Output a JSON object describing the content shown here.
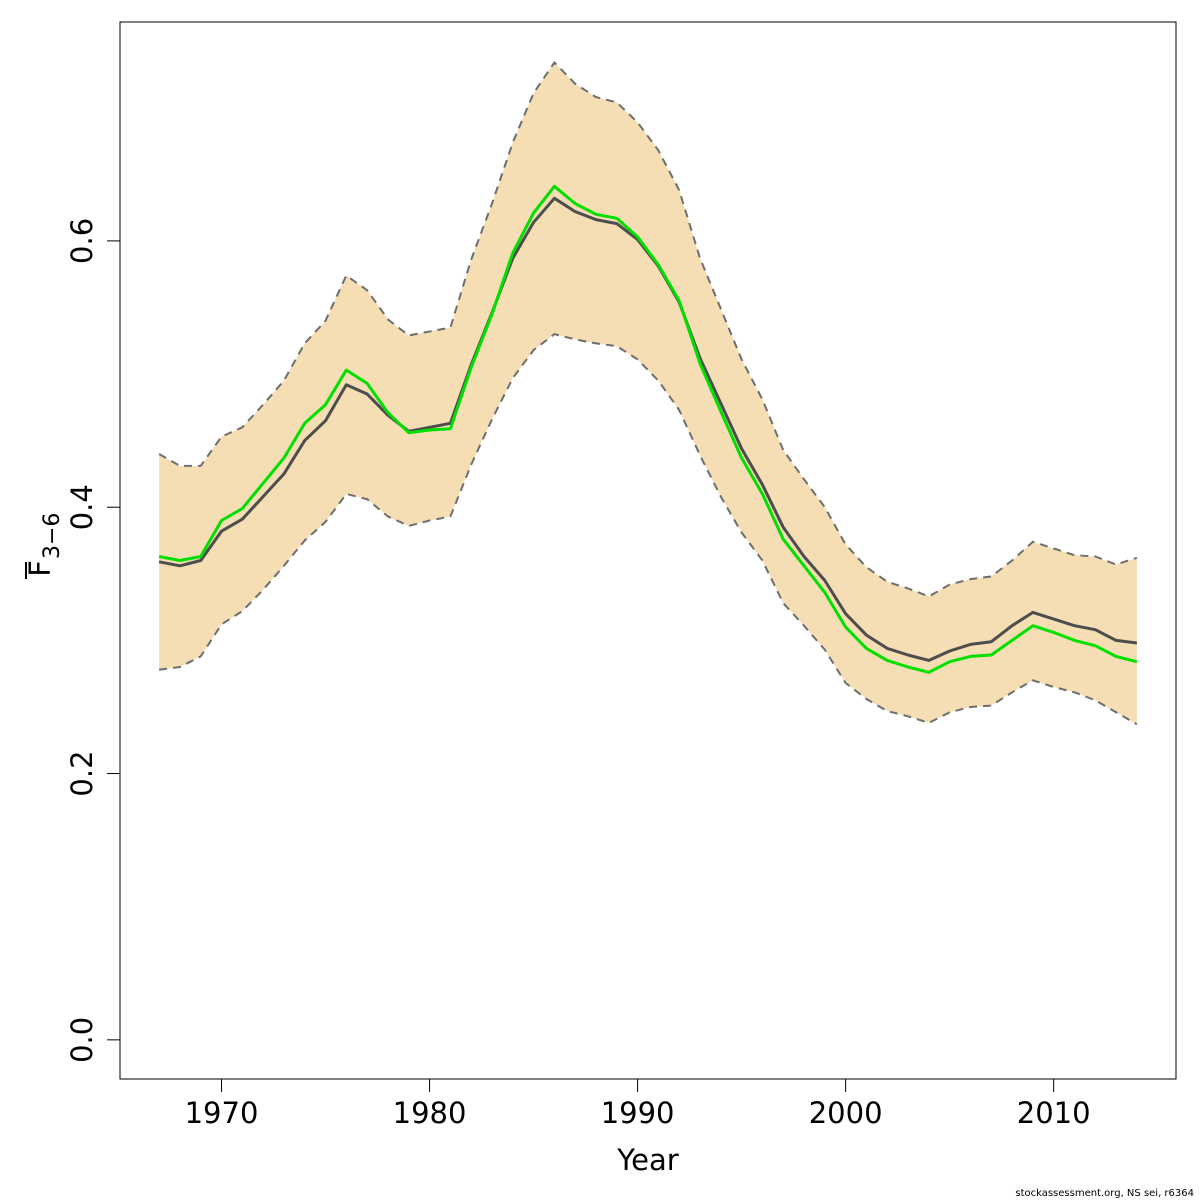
{
  "chart_data": {
    "type": "line",
    "xlabel": "Year",
    "ylabel": "F",
    "ylabel_sub": "3−6",
    "footnote": "stockassessment.org, NS sei, r6364",
    "x": [
      1967,
      1968,
      1969,
      1970,
      1971,
      1972,
      1973,
      1974,
      1975,
      1976,
      1977,
      1978,
      1979,
      1980,
      1981,
      1982,
      1983,
      1984,
      1985,
      1986,
      1987,
      1988,
      1989,
      1990,
      1991,
      1992,
      1993,
      1994,
      1995,
      1996,
      1997,
      1998,
      1999,
      2000,
      2001,
      2002,
      2003,
      2004,
      2005,
      2006,
      2007,
      2008,
      2009,
      2010,
      2011,
      2012,
      2013,
      2014
    ],
    "band": {
      "color": "#f5deb3",
      "edge_color": "#6e6e6e",
      "upper": [
        0.44,
        0.431,
        0.431,
        0.453,
        0.46,
        0.477,
        0.495,
        0.523,
        0.54,
        0.574,
        0.563,
        0.541,
        0.529,
        0.532,
        0.535,
        0.586,
        0.628,
        0.674,
        0.711,
        0.734,
        0.718,
        0.708,
        0.704,
        0.689,
        0.668,
        0.638,
        0.587,
        0.549,
        0.511,
        0.481,
        0.443,
        0.421,
        0.4,
        0.372,
        0.355,
        0.344,
        0.339,
        0.333,
        0.342,
        0.346,
        0.348,
        0.36,
        0.374,
        0.369,
        0.364,
        0.363,
        0.357,
        0.362
      ],
      "lower": [
        0.278,
        0.28,
        0.288,
        0.312,
        0.322,
        0.338,
        0.356,
        0.375,
        0.389,
        0.41,
        0.406,
        0.393,
        0.386,
        0.39,
        0.393,
        0.432,
        0.466,
        0.497,
        0.518,
        0.53,
        0.526,
        0.523,
        0.521,
        0.511,
        0.495,
        0.473,
        0.439,
        0.408,
        0.381,
        0.36,
        0.328,
        0.311,
        0.293,
        0.268,
        0.256,
        0.247,
        0.243,
        0.238,
        0.246,
        0.25,
        0.251,
        0.261,
        0.27,
        0.265,
        0.261,
        0.255,
        0.246,
        0.237
      ]
    },
    "series": [
      {
        "color": "#4d4d4d",
        "values": [
          0.359,
          0.356,
          0.36,
          0.382,
          0.391,
          0.408,
          0.425,
          0.45,
          0.465,
          0.492,
          0.485,
          0.469,
          0.457,
          0.46,
          0.463,
          0.507,
          0.546,
          0.587,
          0.614,
          0.632,
          0.622,
          0.616,
          0.613,
          0.601,
          0.581,
          0.554,
          0.512,
          0.478,
          0.444,
          0.417,
          0.385,
          0.363,
          0.345,
          0.32,
          0.304,
          0.294,
          0.289,
          0.285,
          0.292,
          0.297,
          0.299,
          0.311,
          0.321,
          0.316,
          0.311,
          0.308,
          0.3,
          0.298
        ]
      },
      {
        "color": "#00e000",
        "values": [
          0.363,
          0.36,
          0.363,
          0.39,
          0.399,
          0.418,
          0.437,
          0.463,
          0.477,
          0.503,
          0.493,
          0.471,
          0.456,
          0.458,
          0.459,
          0.505,
          0.545,
          0.591,
          0.621,
          0.641,
          0.628,
          0.62,
          0.617,
          0.603,
          0.582,
          0.555,
          0.508,
          0.472,
          0.437,
          0.41,
          0.376,
          0.356,
          0.336,
          0.31,
          0.294,
          0.285,
          0.28,
          0.276,
          0.284,
          0.288,
          0.289,
          0.3,
          0.311,
          0.306,
          0.3,
          0.296,
          0.288,
          0.284
        ]
      }
    ],
    "xlim": [
      1965.12,
      2015.88
    ],
    "ylim": [
      -0.0294,
      0.7644
    ],
    "xticks": [
      1970,
      1980,
      1990,
      2000,
      2010
    ],
    "yticks": [
      {
        "value": 0,
        "label": "0.0"
      },
      0.2,
      0.4,
      0.6
    ]
  }
}
